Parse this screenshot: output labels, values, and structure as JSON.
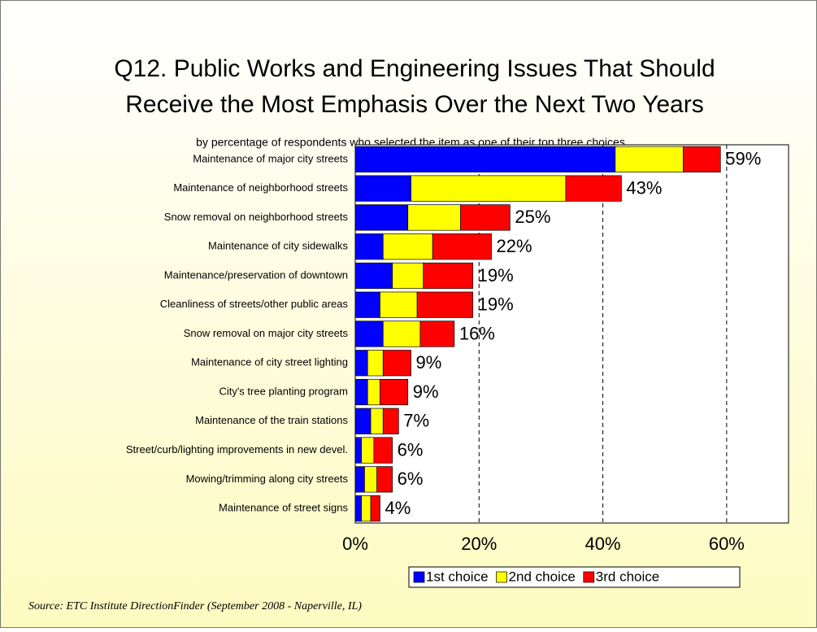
{
  "chart_data": {
    "type": "stacked-barh",
    "title": [
      "Q12.  Public Works and Engineering Issues That Should",
      "Receive the Most Emphasis Over the Next Two Years"
    ],
    "subtitle": "by percentage of respondents who selected the item as one of their top three choices",
    "categories": [
      "Maintenance of major city streets",
      "Maintenance of neighborhood streets",
      "Snow removal on neighborhood streets",
      "Maintenance of city sidewalks",
      "Maintenance/preservation of downtown",
      "Cleanliness of streets/other public areas",
      "Snow removal on major city streets",
      "Maintenance of city street lighting",
      "City's tree planting program",
      "Maintenance of the train stations",
      "Street/curb/lighting improvements in new devel.",
      "Mowing/trimming along city streets",
      "Maintenance of street signs"
    ],
    "series": [
      {
        "name": "1st choice",
        "color": "#0000ff",
        "values": [
          42,
          9,
          8.5,
          4.5,
          6,
          4,
          4.5,
          2,
          2,
          2.5,
          1,
          1.5,
          1
        ]
      },
      {
        "name": "2nd choice",
        "color": "#ffff00",
        "values": [
          11,
          25,
          8.5,
          8,
          5,
          6,
          6,
          2.5,
          2,
          2,
          2,
          2,
          1.5
        ]
      },
      {
        "name": "3rd choice",
        "color": "#ff0000",
        "values": [
          6,
          9,
          8,
          9.5,
          8,
          9,
          5.5,
          4.5,
          4.5,
          2.5,
          3,
          2.5,
          1.5
        ]
      }
    ],
    "totals": [
      59,
      43,
      25,
      22,
      19,
      19,
      16,
      9,
      9,
      7,
      6,
      6,
      4
    ],
    "total_labels": [
      "59%",
      "43%",
      "25%",
      "22%",
      "19%",
      "19%",
      "16%",
      "9%",
      "9%",
      "7%",
      "6%",
      "6%",
      "4%"
    ],
    "xlim": [
      0,
      70
    ],
    "xticks": [
      {
        "value": 0,
        "label": "0%"
      },
      {
        "value": 20,
        "label": "20%"
      },
      {
        "value": 40,
        "label": "40%"
      },
      {
        "value": 60,
        "label": "60%"
      }
    ],
    "grid": true,
    "legend": "bottom",
    "source": "Source:  ETC Institute DirectionFinder (September 2008 - Naperville, IL)"
  }
}
